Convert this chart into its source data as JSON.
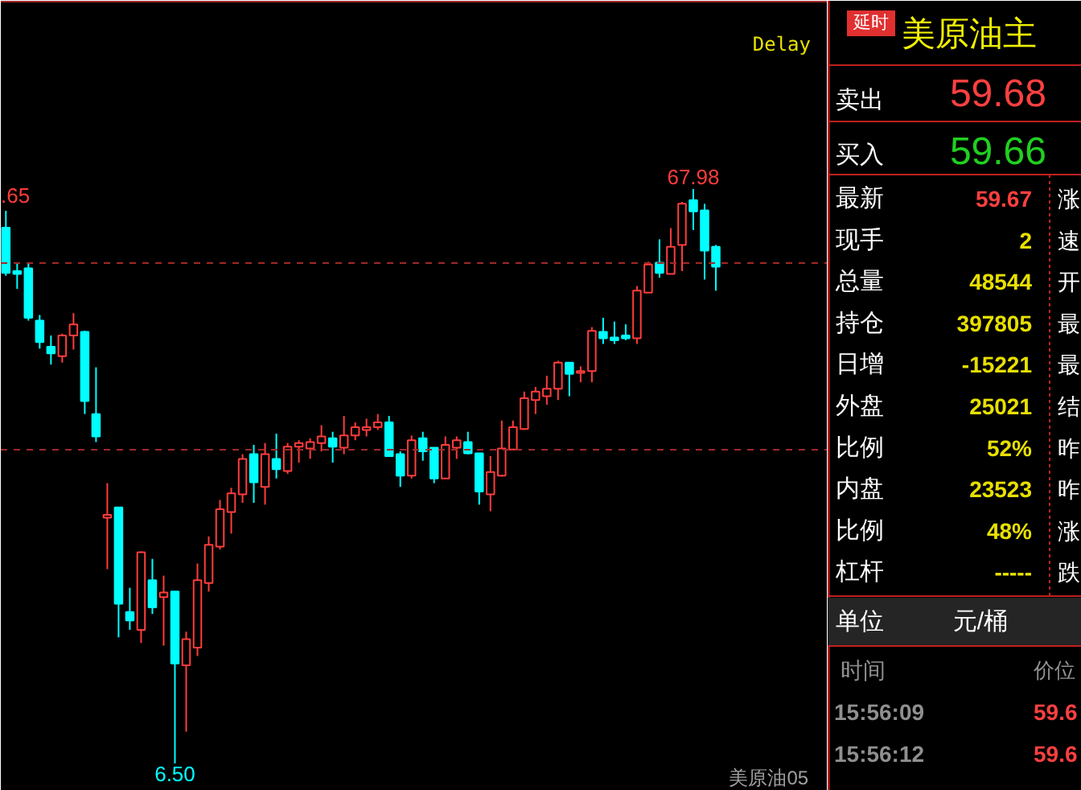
{
  "chart_data": [
    {
      "type": "candlestick",
      "categories": [
        null,
        null,
        null,
        null,
        null,
        null,
        null,
        null,
        null,
        null,
        null,
        null,
        null,
        null,
        null,
        null,
        null,
        null,
        null,
        null,
        null,
        null,
        null,
        null,
        null,
        null,
        null,
        null,
        null,
        null,
        null,
        null,
        null,
        null,
        null,
        null,
        null,
        null,
        null,
        null,
        null,
        null,
        null,
        null,
        null,
        null,
        null,
        null,
        null,
        null,
        null,
        null,
        null,
        null,
        null,
        null,
        null,
        null,
        null,
        null,
        null,
        null,
        null,
        null
      ],
      "ohlc": [
        [
          63.85,
          65.65,
          58.7,
          59.0
        ],
        [
          59.2,
          60.1,
          57.3,
          58.9
        ],
        [
          59.5,
          60.0,
          53.9,
          54.2
        ],
        [
          53.9,
          54.5,
          50.9,
          51.6
        ],
        [
          51.1,
          52.3,
          49.2,
          50.4
        ],
        [
          50.1,
          52.5,
          49.4,
          52.3
        ],
        [
          52.3,
          54.7,
          50.8,
          53.5
        ],
        [
          52.7,
          52.8,
          43.9,
          45.3
        ],
        [
          43.9,
          48.9,
          40.9,
          41.5
        ],
        [
          32.8,
          36.5,
          27.3,
          33.1
        ],
        [
          33.9,
          33.9,
          20.0,
          23.6
        ],
        [
          22.7,
          25.3,
          20.8,
          21.8
        ],
        [
          20.8,
          29.2,
          19.4,
          29.1
        ],
        [
          26.1,
          28.4,
          22.5,
          23.2
        ],
        [
          24.3,
          26.6,
          19.1,
          24.8
        ],
        [
          24.9,
          24.9,
          6.5,
          17.2
        ],
        [
          17.0,
          20.6,
          9.9,
          19.8
        ],
        [
          18.9,
          27.9,
          18.0,
          26.1
        ],
        [
          25.8,
          30.8,
          24.9,
          29.9
        ],
        [
          29.7,
          34.7,
          29.4,
          33.7
        ],
        [
          33.4,
          36.0,
          31.1,
          35.4
        ],
        [
          35.3,
          39.6,
          34.4,
          39.1
        ],
        [
          39.6,
          40.6,
          34.4,
          36.6
        ],
        [
          36.1,
          40.8,
          34.2,
          39.6
        ],
        [
          39.1,
          41.8,
          37.0,
          38.0
        ],
        [
          37.8,
          40.8,
          37.5,
          40.4
        ],
        [
          40.4,
          41.1,
          38.7,
          40.8
        ],
        [
          40.2,
          41.3,
          39.1,
          40.9
        ],
        [
          40.8,
          42.7,
          39.9,
          41.5
        ],
        [
          41.3,
          42.0,
          38.7,
          40.4
        ],
        [
          40.3,
          43.7,
          39.6,
          41.6
        ],
        [
          41.6,
          43.0,
          41.1,
          42.5
        ],
        [
          42.2,
          43.4,
          41.5,
          42.5
        ],
        [
          42.5,
          43.9,
          42.2,
          43.0
        ],
        [
          43.0,
          43.7,
          39.4,
          39.4
        ],
        [
          39.6,
          39.9,
          36.1,
          37.3
        ],
        [
          37.3,
          41.6,
          37.0,
          41.1
        ],
        [
          41.3,
          42.0,
          38.9,
          39.9
        ],
        [
          40.3,
          40.3,
          36.5,
          37.0
        ],
        [
          37.0,
          41.5,
          37.0,
          40.6
        ],
        [
          40.3,
          41.5,
          39.1,
          41.1
        ],
        [
          40.9,
          42.0,
          39.6,
          39.7
        ],
        [
          39.7,
          39.7,
          34.2,
          35.6
        ],
        [
          35.3,
          39.4,
          33.5,
          37.7
        ],
        [
          37.3,
          43.2,
          37.2,
          40.2
        ],
        [
          40.1,
          43.2,
          40.1,
          42.5
        ],
        [
          42.3,
          46.3,
          42.2,
          45.6
        ],
        [
          45.4,
          46.8,
          43.9,
          46.3
        ],
        [
          45.8,
          48.0,
          44.9,
          46.6
        ],
        [
          46.6,
          49.6,
          45.4,
          49.4
        ],
        [
          49.4,
          49.4,
          45.8,
          48.2
        ],
        [
          48.3,
          49.0,
          47.3,
          48.5
        ],
        [
          48.5,
          53.2,
          47.3,
          52.8
        ],
        [
          52.7,
          54.2,
          51.4,
          52.0
        ],
        [
          52.1,
          53.8,
          51.4,
          51.8
        ],
        [
          52.3,
          53.5,
          51.8,
          52.0
        ],
        [
          52.0,
          57.6,
          51.4,
          57.1
        ],
        [
          56.9,
          60.2,
          56.9,
          59.9
        ],
        [
          60.1,
          62.6,
          58.5,
          59.0
        ],
        [
          58.9,
          63.8,
          58.9,
          61.8
        ],
        [
          62.0,
          66.6,
          59.2,
          66.4
        ],
        [
          66.8,
          67.98,
          63.6,
          65.6
        ],
        [
          65.7,
          66.4,
          58.3,
          61.4
        ],
        [
          61.8,
          62.0,
          57.1,
          59.67
        ]
      ],
      "colors": [
        "#00ffff",
        "#00ffff",
        "#00ffff",
        "#00ffff",
        "#00ffff",
        "#ff3c3c",
        "#ff3c3c",
        "#00ffff",
        "#00ffff",
        "#ff3c3c",
        "#00ffff",
        "#00ffff",
        "#ff3c3c",
        "#00ffff",
        "#ff3c3c",
        "#00ffff",
        "#ff3c3c",
        "#ff3c3c",
        "#ff3c3c",
        "#ff3c3c",
        "#ff3c3c",
        "#ff3c3c",
        "#00ffff",
        "#ff3c3c",
        "#00ffff",
        "#ff3c3c",
        "#ff3c3c",
        "#ff3c3c",
        "#ff3c3c",
        "#00ffff",
        "#ff3c3c",
        "#ff3c3c",
        "#ff3c3c",
        "#ff3c3c",
        "#00ffff",
        "#00ffff",
        "#ff3c3c",
        "#00ffff",
        "#00ffff",
        "#ff3c3c",
        "#ff3c3c",
        "#00ffff",
        "#00ffff",
        "#ff3c3c",
        "#ff3c3c",
        "#ff3c3c",
        "#ff3c3c",
        "#ff3c3c",
        "#ff3c3c",
        "#ff3c3c",
        "#00ffff",
        "#ff3c3c",
        "#ff3c3c",
        "#00ffff",
        "#00ffff",
        "#00ffff",
        "#ff3c3c",
        "#ff3c3c",
        "#00ffff",
        "#ff3c3c",
        "#ff3c3c",
        "#00ffff",
        "#00ffff",
        "#00ffff"
      ],
      "ref_lines": [
        {
          "axis": "y",
          "value": 60.06,
          "color": "#a02828",
          "line_style": "dashed"
        },
        {
          "axis": "y",
          "value": 40.08,
          "color": "#a02828",
          "line_style": "dashed"
        }
      ],
      "annotations": [
        ".65",
        {
          "text": "67.98",
          "y": 67.98
        },
        {
          "text": "6.50",
          "y": 6.5
        },
        "Delay",
        "美原油05"
      ],
      "tick_labels": false,
      "grid": false
    },
    {
      "type": "other",
      "title": "美原油主",
      "subtitle": "延时",
      "annotations": [
        "卖出",
        "59.68",
        "买入",
        "59.66",
        "最新",
        "59.67",
        "现手",
        "2",
        "总量",
        "48544",
        "持仓",
        "397805",
        "日增",
        "-15221",
        "外盘",
        "25021",
        "比例",
        "52%",
        "内盘",
        "23523",
        "比例",
        "48%",
        "杠杆",
        "-----",
        "涨",
        "速",
        "开",
        "最",
        "最",
        "结",
        "昨",
        "昨",
        "涨",
        "跌",
        "单位",
        "元/桶",
        "时间",
        "价位",
        "15:56:09",
        "59.6",
        "15:56:12",
        "59.6"
      ]
    }
  ]
}
